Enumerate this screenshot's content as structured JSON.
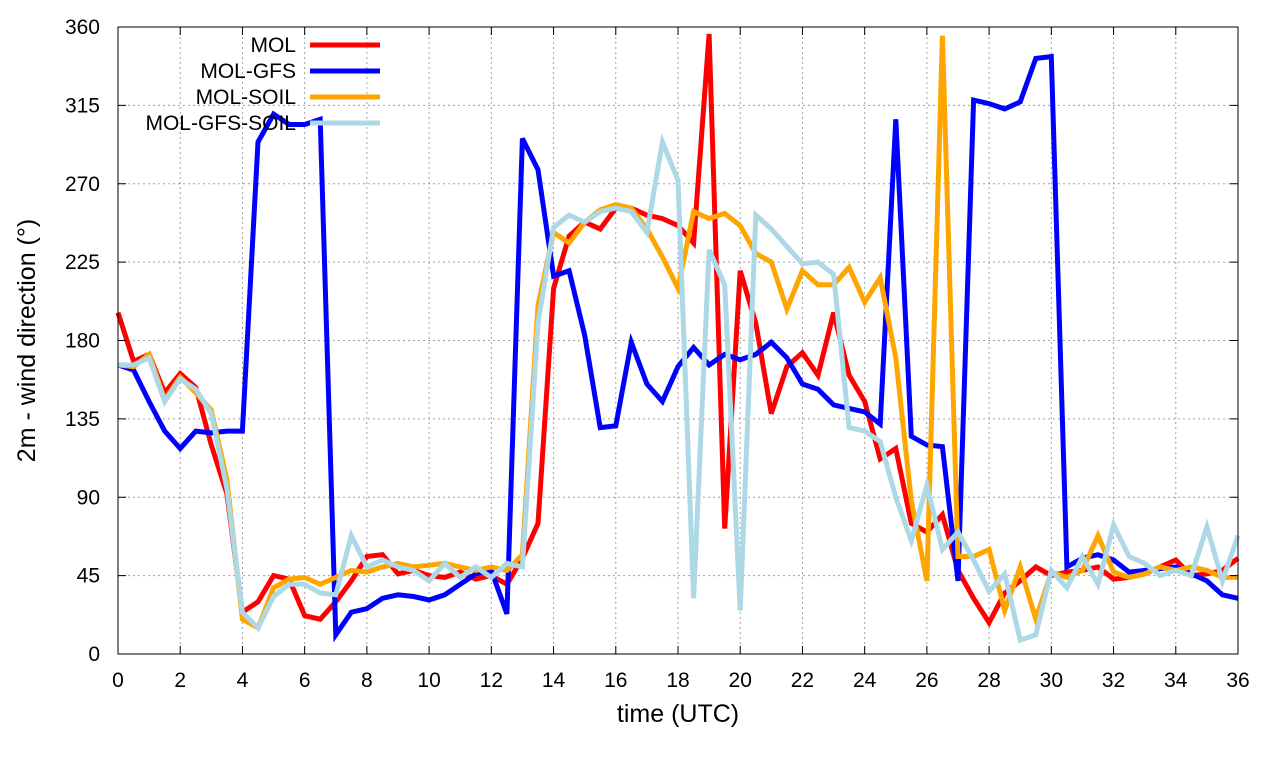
{
  "chart_data": {
    "type": "line",
    "title": "",
    "xlabel": "time (UTC)",
    "ylabel": "2m - wind direction (°)",
    "xlim": [
      0,
      36
    ],
    "ylim": [
      0,
      360
    ],
    "xticks": [
      0,
      2,
      4,
      6,
      8,
      10,
      12,
      14,
      16,
      18,
      20,
      22,
      24,
      26,
      28,
      30,
      32,
      34,
      36
    ],
    "yticks": [
      0,
      45,
      90,
      135,
      180,
      225,
      270,
      315,
      360
    ],
    "grid": true,
    "legend_position": "top-left",
    "series": [
      {
        "name": "MOL",
        "color": "#ff0000",
        "x": [
          0,
          0.5,
          1,
          1.5,
          2,
          2.5,
          3,
          3.5,
          4,
          4.5,
          5,
          5.5,
          6,
          6.5,
          7,
          7.5,
          8,
          8.5,
          9,
          9.5,
          10,
          10.5,
          11,
          11.5,
          12,
          12.5,
          13,
          13.5,
          14,
          14.5,
          15,
          15.5,
          16,
          16.5,
          17,
          17.5,
          18,
          18.5,
          19,
          19.5,
          20,
          20.5,
          21,
          21.5,
          22,
          22.5,
          23,
          23.5,
          24,
          24.5,
          25,
          25.5,
          26,
          26.5,
          27,
          27.5,
          28,
          28.5,
          29,
          29.5,
          30,
          30.5,
          31,
          31.5,
          32,
          32.5,
          33,
          33.5,
          34,
          34.5,
          35,
          35.5,
          36
        ],
        "values": [
          196,
          168,
          172,
          150,
          161,
          153,
          120,
          92,
          24,
          30,
          45,
          43,
          22,
          20,
          30,
          42,
          56,
          57,
          46,
          48,
          45,
          44,
          47,
          43,
          45,
          40,
          55,
          75,
          210,
          240,
          248,
          244,
          256,
          256,
          252,
          250,
          246,
          236,
          356,
          72,
          220,
          190,
          138,
          165,
          173,
          160,
          196,
          160,
          145,
          112,
          118,
          75,
          70,
          80,
          48,
          32,
          18,
          35,
          42,
          50,
          45,
          47,
          48,
          50,
          43,
          44,
          46,
          50,
          54,
          45,
          46,
          48,
          55
        ]
      },
      {
        "name": "MOL-GFS",
        "color": "#0000ff",
        "x": [
          0,
          0.5,
          1,
          1.5,
          2,
          2.5,
          3,
          3.5,
          4,
          4.5,
          5,
          5.5,
          6,
          6.5,
          7,
          7.5,
          8,
          8.5,
          9,
          9.5,
          10,
          10.5,
          11,
          11.5,
          12,
          12.5,
          13,
          13.5,
          14,
          14.5,
          15,
          15.5,
          16,
          16.5,
          17,
          17.5,
          18,
          18.5,
          19,
          19.5,
          20,
          20.5,
          21,
          21.5,
          22,
          22.5,
          23,
          23.5,
          24,
          24.5,
          25,
          25.5,
          26,
          26.5,
          27,
          27.5,
          28,
          28.5,
          29,
          29.5,
          30,
          30.5,
          31,
          31.5,
          32,
          32.5,
          33,
          33.5,
          34,
          34.5,
          35,
          35.5,
          36
        ],
        "values": [
          166,
          163,
          145,
          128,
          118,
          128,
          127,
          128,
          128,
          294,
          310,
          304,
          304,
          307,
          11,
          24,
          26,
          32,
          34,
          33,
          31,
          34,
          40,
          46,
          48,
          23,
          296,
          278,
          217,
          220,
          183,
          130,
          131,
          179,
          155,
          145,
          165,
          176,
          166,
          172,
          169,
          172,
          179,
          170,
          155,
          152,
          143,
          141,
          139,
          132,
          307,
          125,
          120,
          119,
          42,
          318,
          316,
          313,
          317,
          342,
          343,
          50,
          55,
          57,
          54,
          47,
          48,
          49,
          50,
          46,
          42,
          34,
          32
        ]
      },
      {
        "name": "MOL-SOIL",
        "color": "#ffa500",
        "x": [
          0,
          0.5,
          1,
          1.5,
          2,
          2.5,
          3,
          3.5,
          4,
          4.5,
          5,
          5.5,
          6,
          6.5,
          7,
          7.5,
          8,
          8.5,
          9,
          9.5,
          10,
          10.5,
          11,
          11.5,
          12,
          12.5,
          13,
          13.5,
          14,
          14.5,
          15,
          15.5,
          16,
          16.5,
          17,
          17.5,
          18,
          18.5,
          19,
          19.5,
          20,
          20.5,
          21,
          21.5,
          22,
          22.5,
          23,
          23.5,
          24,
          24.5,
          25,
          25.5,
          26,
          26.5,
          27,
          27.5,
          28,
          28.5,
          29,
          29.5,
          30,
          30.5,
          31,
          31.5,
          32,
          32.5,
          33,
          33.5,
          34,
          34.5,
          35,
          35.5,
          36
        ],
        "values": [
          166,
          165,
          172,
          146,
          159,
          150,
          140,
          100,
          20,
          15,
          38,
          43,
          44,
          40,
          44,
          48,
          47,
          50,
          52,
          50,
          51,
          52,
          50,
          48,
          50,
          48,
          57,
          200,
          242,
          236,
          248,
          255,
          258,
          256,
          244,
          228,
          210,
          254,
          250,
          253,
          246,
          230,
          225,
          198,
          220,
          212,
          212,
          222,
          202,
          216,
          170,
          88,
          42,
          355,
          56,
          56,
          60,
          25,
          50,
          20,
          47,
          44,
          48,
          68,
          47,
          44,
          46,
          50,
          48,
          50,
          48,
          44,
          44
        ]
      },
      {
        "name": "MOL-GFS-SOIL",
        "color": "#add8e6",
        "x": [
          0,
          0.5,
          1,
          1.5,
          2,
          2.5,
          3,
          3.5,
          4,
          4.5,
          5,
          5.5,
          6,
          6.5,
          7,
          7.5,
          8,
          8.5,
          9,
          9.5,
          10,
          10.5,
          11,
          11.5,
          12,
          12.5,
          13,
          13.5,
          14,
          14.5,
          15,
          15.5,
          16,
          16.5,
          17,
          17.5,
          18,
          18.5,
          19,
          19.5,
          20,
          20.5,
          21,
          21.5,
          22,
          22.5,
          23,
          23.5,
          24,
          24.5,
          25,
          25.5,
          26,
          26.5,
          27,
          27.5,
          28,
          28.5,
          29,
          29.5,
          30,
          30.5,
          31,
          31.5,
          32,
          32.5,
          33,
          33.5,
          34,
          34.5,
          35,
          35.5,
          36
        ],
        "values": [
          166,
          166,
          170,
          145,
          158,
          152,
          138,
          95,
          24,
          15,
          33,
          40,
          40,
          35,
          34,
          68,
          50,
          54,
          50,
          48,
          42,
          52,
          44,
          50,
          44,
          52,
          50,
          190,
          245,
          252,
          248,
          254,
          256,
          254,
          242,
          294,
          272,
          32,
          232,
          212,
          25,
          252,
          244,
          234,
          224,
          225,
          218,
          130,
          128,
          122,
          90,
          65,
          97,
          60,
          70,
          54,
          36,
          46,
          8,
          11,
          48,
          38,
          56,
          40,
          74,
          56,
          52,
          45,
          48,
          45,
          73,
          42,
          68
        ]
      }
    ]
  }
}
